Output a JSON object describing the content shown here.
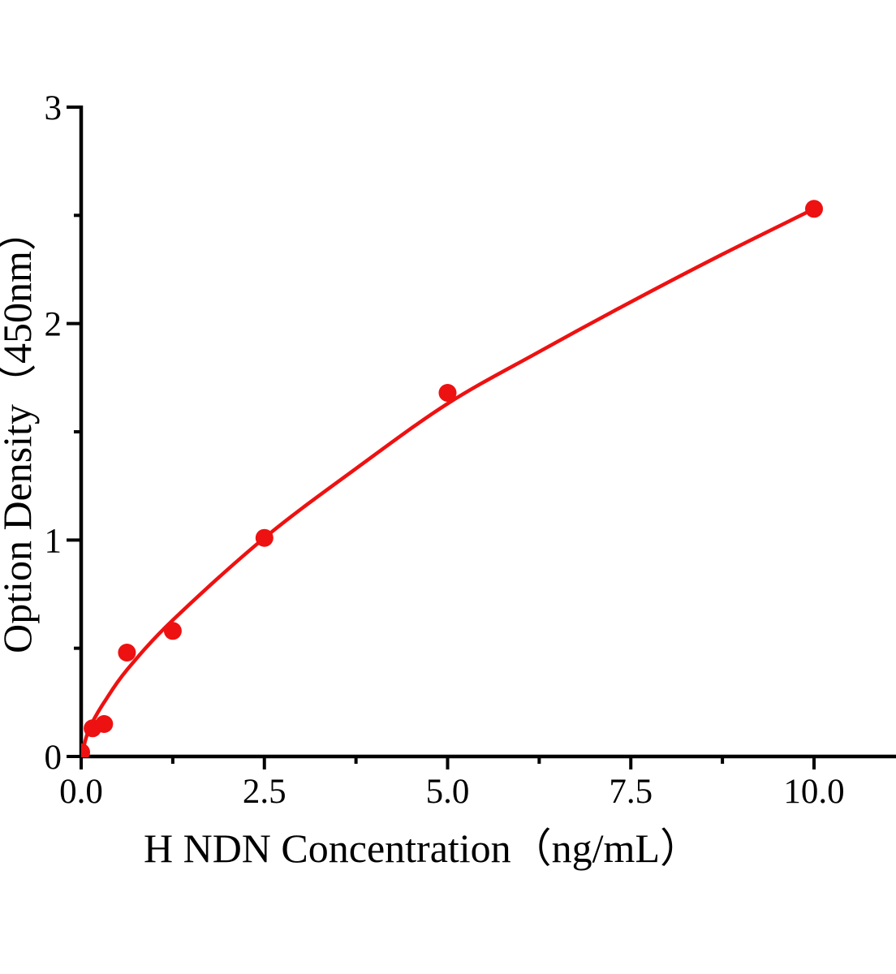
{
  "figure": {
    "background": "#ffffff"
  },
  "chart_data": {
    "type": "scatter",
    "title": "",
    "xlabel": "H NDN Concentration（ng/mL）",
    "ylabel": "Option Density（450nm）",
    "xlim": [
      0,
      11.1
    ],
    "ylim": [
      0,
      3
    ],
    "grid": false,
    "legend": null,
    "axis_color": "#000000",
    "marker_color": "#ee1111",
    "line_color": "#ee1111",
    "x_major_ticks": [
      0,
      2.5,
      5,
      7.5,
      10
    ],
    "x_tick_labels": [
      "0.0",
      "2.5",
      "5.0",
      "7.5",
      "10.0"
    ],
    "x_minor_ticks": [
      1.25,
      3.75,
      6.25,
      8.75
    ],
    "y_major_ticks": [
      0,
      1,
      2,
      3
    ],
    "y_tick_labels": [
      "0",
      "1",
      "2",
      "3"
    ],
    "y_minor_ticks": [
      0.5,
      1.5,
      2.5
    ],
    "points": [
      {
        "x": 0,
        "y": 0.02
      },
      {
        "x": 0.156,
        "y": 0.13
      },
      {
        "x": 0.313,
        "y": 0.15
      },
      {
        "x": 0.625,
        "y": 0.48
      },
      {
        "x": 1.25,
        "y": 0.58
      },
      {
        "x": 2.5,
        "y": 1.01
      },
      {
        "x": 5.0,
        "y": 1.68
      },
      {
        "x": 10.0,
        "y": 2.53
      }
    ],
    "fit_curve": [
      [
        0,
        0
      ],
      [
        0.08,
        0.1
      ],
      [
        0.156,
        0.16
      ],
      [
        0.313,
        0.25
      ],
      [
        0.625,
        0.4
      ],
      [
        1.25,
        0.63
      ],
      [
        2.5,
        1.01
      ],
      [
        3.75,
        1.33
      ],
      [
        5.0,
        1.63
      ],
      [
        6.25,
        1.87
      ],
      [
        7.5,
        2.1
      ],
      [
        8.75,
        2.32
      ],
      [
        10.0,
        2.53
      ]
    ]
  }
}
